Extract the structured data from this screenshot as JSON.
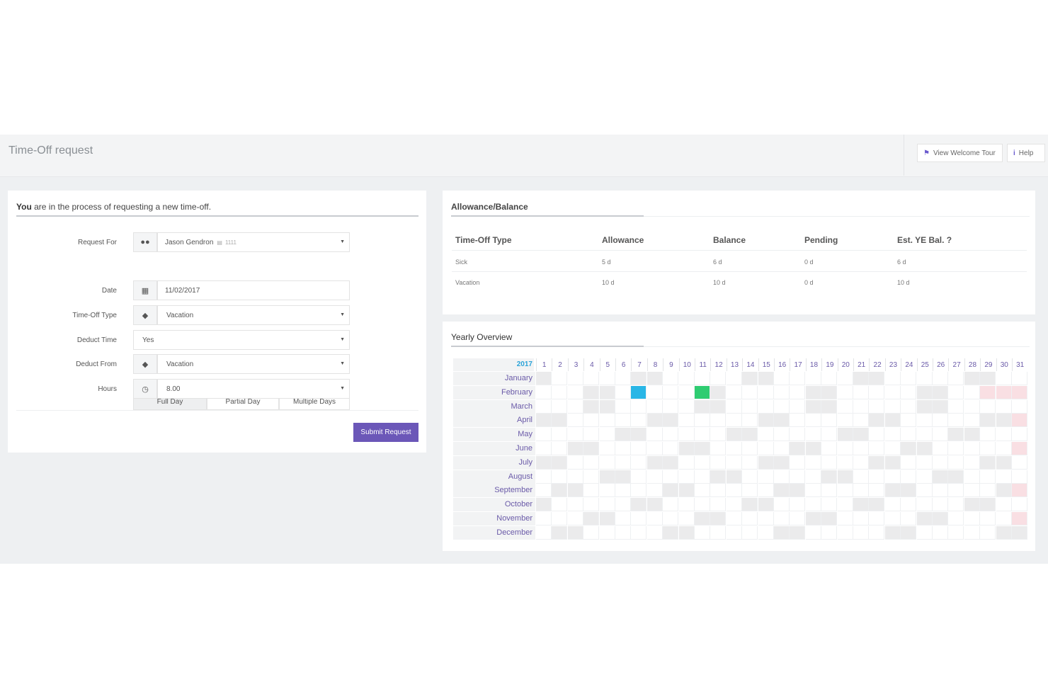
{
  "header": {
    "title": "Time-Off request",
    "buttons": [
      {
        "label": "View Welcome Tour",
        "icon": "graduation-cap-icon"
      },
      {
        "label": "Help",
        "icon": "info-icon"
      }
    ]
  },
  "form": {
    "intro_bold": "You",
    "intro_rest": " are in the process of requesting a new time-off.",
    "request_for": {
      "label": "Request For",
      "value": "Jason Gendron",
      "id": "1111"
    },
    "day_options": [
      "Full Day",
      "Partial Day",
      "Multiple Days"
    ],
    "selected_day_option": "Full Day",
    "date": {
      "label": "Date",
      "value": "11/02/2017"
    },
    "time_off_type": {
      "label": "Time-Off Type",
      "value": "Vacation"
    },
    "deduct_time": {
      "label": "Deduct Time",
      "value": "Yes"
    },
    "deduct_from": {
      "label": "Deduct From",
      "value": "Vacation"
    },
    "hours": {
      "label": "Hours",
      "value": "8.00"
    },
    "submit_label": "Submit Request"
  },
  "allowance": {
    "title": "Allowance/Balance",
    "columns": [
      "Time-Off Type",
      "Allowance",
      "Balance",
      "Pending",
      "Est. YE Bal. ?"
    ],
    "rows": [
      [
        "Sick",
        "5 d",
        "6 d",
        "0 d",
        "6 d"
      ],
      [
        "Vacation",
        "10 d",
        "10 d",
        "0 d",
        "10 d"
      ]
    ]
  },
  "yearly": {
    "title": "Yearly Overview",
    "year": "2017",
    "days": [
      "1",
      "2",
      "3",
      "4",
      "5",
      "6",
      "7",
      "8",
      "9",
      "10",
      "11",
      "12",
      "13",
      "14",
      "15",
      "16",
      "17",
      "18",
      "19",
      "20",
      "21",
      "22",
      "23",
      "24",
      "25",
      "26",
      "27",
      "28",
      "29",
      "30",
      "31"
    ],
    "months": [
      "January",
      "February",
      "March",
      "April",
      "May",
      "June",
      "July",
      "August",
      "September",
      "October",
      "November",
      "December"
    ],
    "colors": {
      "weekend": "#ebebec",
      "invalid": "#f9dfe3",
      "highlight_blue": "#29b6e6",
      "highlight_green": "#2ecc71"
    },
    "highlights": [
      {
        "month": "February",
        "day": 7,
        "color": "#29b6e6"
      },
      {
        "month": "February",
        "day": 11,
        "color": "#2ecc71"
      }
    ]
  }
}
